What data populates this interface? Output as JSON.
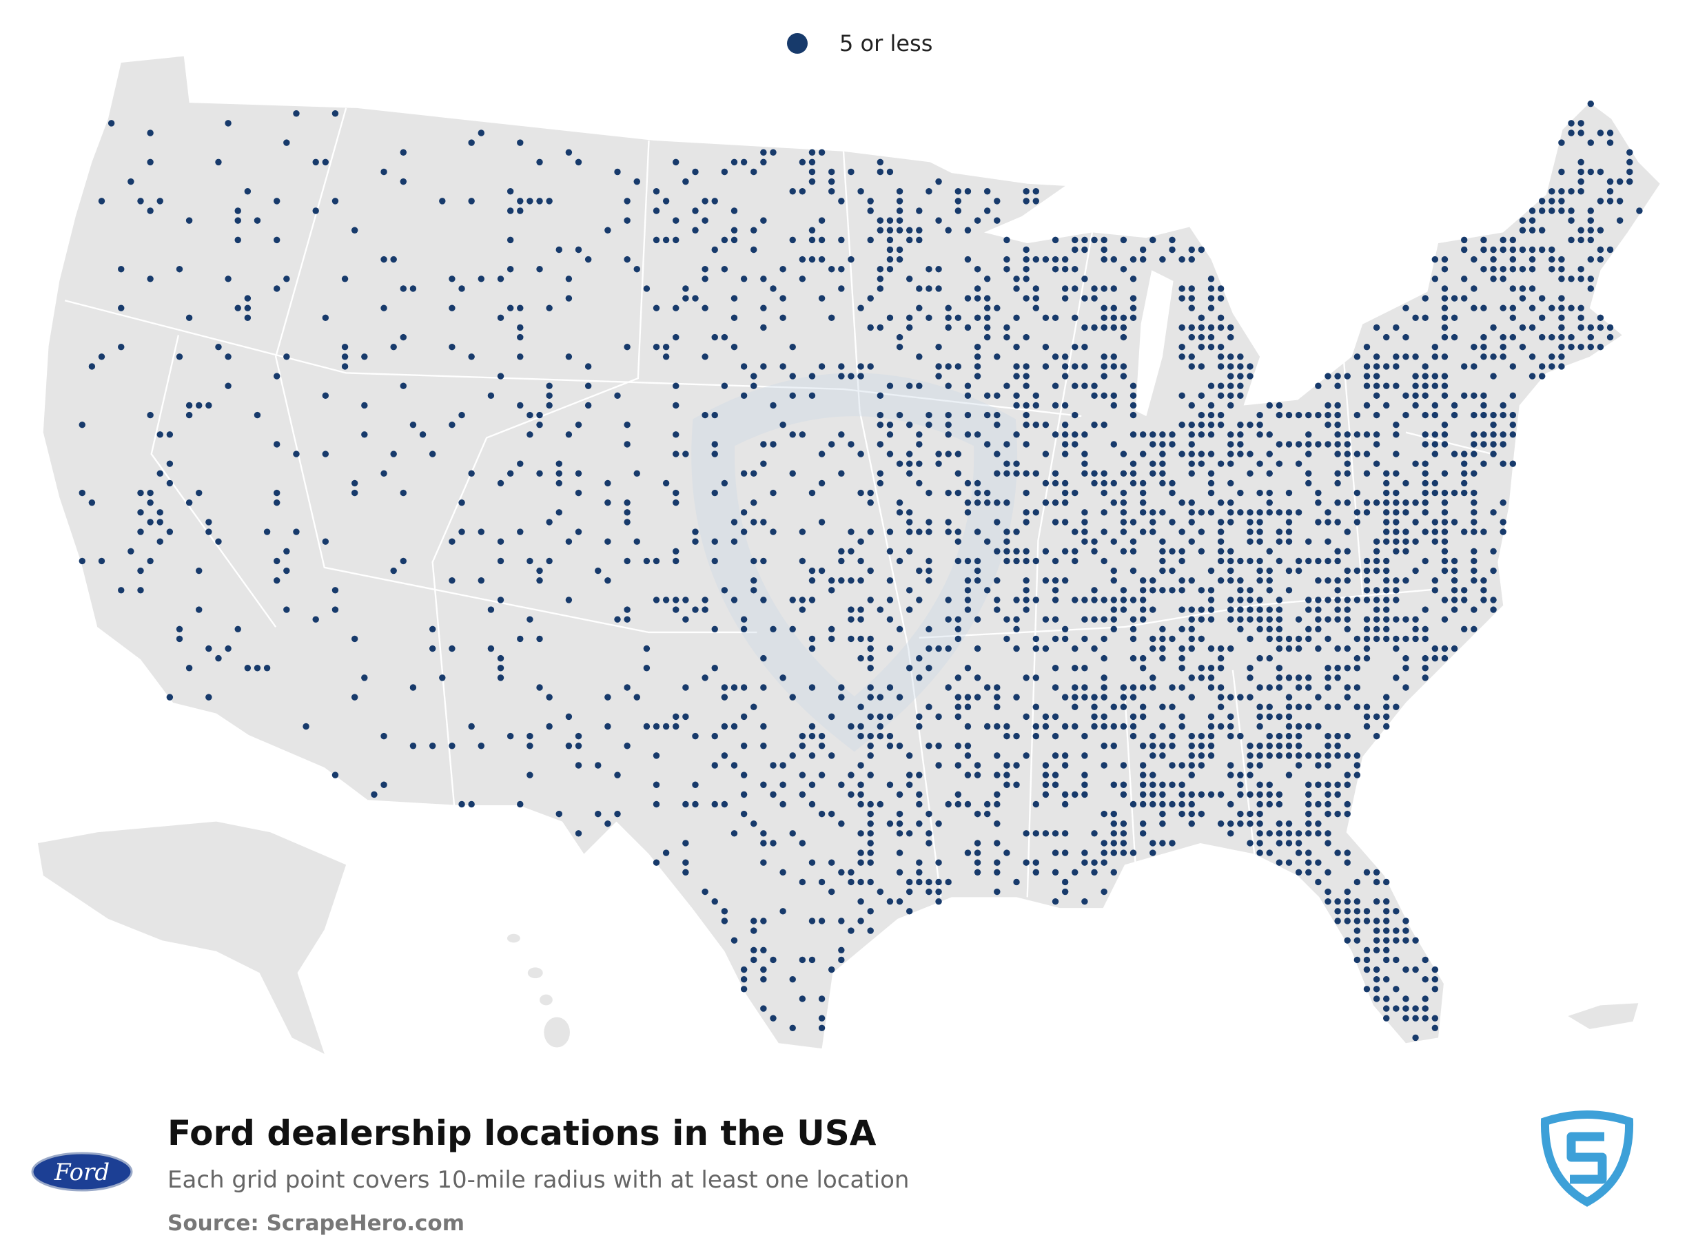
{
  "legend": {
    "label": "5 or less",
    "color": "#173a6b"
  },
  "footer": {
    "title": "Ford dealership locations in the USA",
    "subtitle": "Each grid point covers 10-mile radius with at least one location",
    "source": "Source: ScrapeHero.com"
  },
  "brand_logo": {
    "text": "Ford"
  }
}
